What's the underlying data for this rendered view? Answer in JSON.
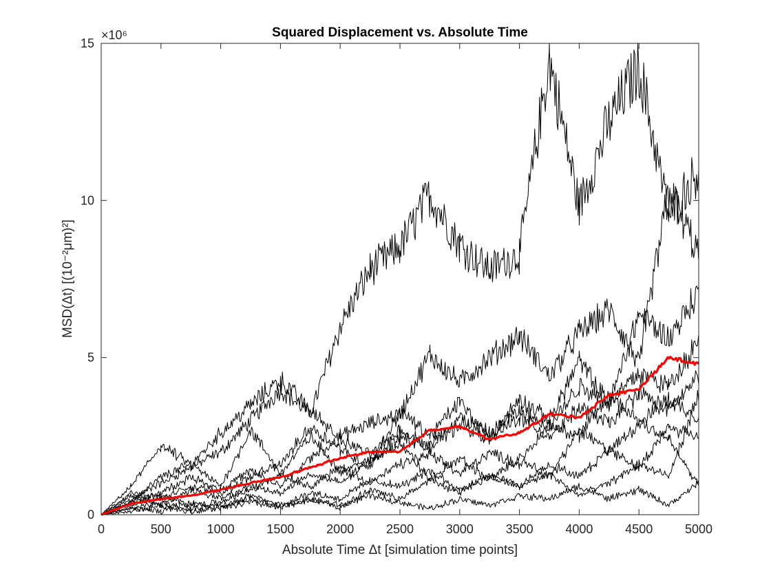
{
  "chart_data": {
    "type": "line",
    "title": "Squared Displacement vs. Absolute Time",
    "xlabel": "Absolute Time Δt [simulation time points]",
    "ylabel": "MSD(Δt) [(10⁻²μm)²]",
    "y_exponent": "×10⁶",
    "xlim": [
      0,
      5000
    ],
    "ylim": [
      0,
      15000000
    ],
    "x_ticks": [
      "0",
      "500",
      "1000",
      "1500",
      "2000",
      "2500",
      "3000",
      "3500",
      "4000",
      "4500",
      "5000"
    ],
    "y_ticks": [
      "0",
      "5",
      "10",
      "15"
    ],
    "grid": false,
    "legend": "none",
    "colors": {
      "trajectory": "#000000",
      "mean": "#ff0000",
      "axes": "#262626"
    },
    "series": [
      {
        "role": "trajectory",
        "x": [
          0,
          250,
          500,
          750,
          1000,
          1250,
          1500,
          1750,
          2000,
          2250,
          2500,
          2750,
          3000,
          3250,
          3500,
          3750,
          4000,
          4250,
          4500,
          4750,
          5000
        ],
        "y": [
          0,
          500000,
          1000000,
          1500000,
          2000000,
          3000000,
          4000000,
          3200000,
          6000000,
          7800000,
          8500000,
          10200000,
          8600000,
          7800000,
          8300000,
          14500000,
          9800000,
          12500000,
          14300000,
          9500000,
          11000000
        ]
      },
      {
        "role": "trajectory",
        "x": [
          0,
          250,
          500,
          750,
          1000,
          1250,
          1500,
          1750,
          2000,
          2250,
          2500,
          2750,
          3000,
          3250,
          3500,
          3750,
          4000,
          4250,
          4500,
          4750,
          5000
        ],
        "y": [
          0,
          400000,
          1200000,
          1600000,
          2600000,
          3500000,
          4300000,
          3300000,
          2500000,
          2900000,
          3200000,
          5100000,
          4200000,
          5000000,
          5700000,
          4400000,
          5800000,
          6500000,
          4800000,
          10300000,
          8300000
        ]
      },
      {
        "role": "trajectory",
        "x": [
          0,
          250,
          500,
          750,
          1000,
          1250,
          1500,
          1750,
          2000,
          2250,
          2500,
          2750,
          3000,
          3250,
          3500,
          3750,
          4000,
          4250,
          4500,
          4750,
          5000
        ],
        "y": [
          0,
          900000,
          2200000,
          1600000,
          900000,
          2700000,
          1300000,
          2500000,
          1400000,
          1700000,
          2300000,
          1100000,
          1800000,
          1100000,
          1800000,
          1200000,
          2700000,
          2000000,
          2900000,
          3700000,
          3100000
        ]
      },
      {
        "role": "trajectory",
        "x": [
          0,
          250,
          500,
          750,
          1000,
          1250,
          1500,
          1750,
          2000,
          2250,
          2500,
          2750,
          3000,
          3250,
          3500,
          3750,
          4000,
          4250,
          4500,
          4750,
          5000
        ],
        "y": [
          0,
          700000,
          500000,
          900000,
          700000,
          1200000,
          1600000,
          2800000,
          2100000,
          1500000,
          3300000,
          2500000,
          3600000,
          2400000,
          3700000,
          3000000,
          4900000,
          3500000,
          6400000,
          5600000,
          7100000
        ]
      },
      {
        "role": "trajectory",
        "x": [
          0,
          250,
          500,
          750,
          1000,
          1250,
          1500,
          1750,
          2000,
          2250,
          2500,
          2750,
          3000,
          3250,
          3500,
          3750,
          4000,
          4250,
          4500,
          4750,
          5000
        ],
        "y": [
          0,
          300000,
          600000,
          300000,
          400000,
          800000,
          1300000,
          900000,
          1500000,
          1000000,
          1600000,
          1900000,
          1300000,
          2000000,
          1600000,
          2900000,
          2500000,
          3800000,
          3000000,
          2400000,
          900000
        ]
      },
      {
        "role": "trajectory",
        "x": [
          0,
          250,
          500,
          750,
          1000,
          1250,
          1500,
          1750,
          2000,
          2250,
          2500,
          2750,
          3000,
          3250,
          3500,
          3750,
          4000,
          4250,
          4500,
          4750,
          5000
        ],
        "y": [
          0,
          200000,
          400000,
          200000,
          300000,
          500000,
          300000,
          700000,
          500000,
          1100000,
          900000,
          1400000,
          800000,
          1200000,
          900000,
          1300000,
          600000,
          1000000,
          1600000,
          1200000,
          3800000
        ]
      },
      {
        "role": "trajectory",
        "x": [
          0,
          250,
          500,
          750,
          1000,
          1250,
          1500,
          1750,
          2000,
          2250,
          2500,
          2750,
          3000,
          3250,
          3500,
          3750,
          4000,
          4250,
          4500,
          4750,
          5000
        ],
        "y": [
          0,
          100000,
          300000,
          100000,
          200000,
          400000,
          200000,
          500000,
          300000,
          600000,
          400000,
          200000,
          500000,
          300000,
          600000,
          500000,
          900000,
          500000,
          800000,
          300000,
          1000000
        ]
      },
      {
        "role": "trajectory",
        "x": [
          0,
          250,
          500,
          750,
          1000,
          1250,
          1500,
          1750,
          2000,
          2250,
          2500,
          2750,
          3000,
          3250,
          3500,
          3750,
          4000,
          4250,
          4500,
          4750,
          5000
        ],
        "y": [
          0,
          400000,
          700000,
          1200000,
          800000,
          1400000,
          900000,
          1800000,
          2400000,
          1900000,
          2700000,
          2200000,
          3100000,
          2600000,
          3300000,
          2800000,
          4100000,
          3600000,
          4500000,
          4100000,
          5600000
        ]
      },
      {
        "role": "trajectory",
        "x": [
          0,
          250,
          500,
          750,
          1000,
          1250,
          1500,
          1750,
          2000,
          2250,
          2500,
          2750,
          3000,
          3250,
          3500,
          3750,
          4000,
          4250,
          4500,
          4750,
          5000
        ],
        "y": [
          0,
          200000,
          100000,
          400000,
          200000,
          600000,
          300000,
          500000,
          200000,
          800000,
          500000,
          1100000,
          700000,
          1300000,
          900000,
          1600000,
          1200000,
          2100000,
          1500000,
          2800000,
          2500000
        ]
      },
      {
        "role": "trajectory",
        "x": [
          0,
          250,
          500,
          750,
          1000,
          1250,
          1500,
          1750,
          2000,
          2250,
          2500,
          2750,
          3000,
          3250,
          3500,
          3750,
          4000,
          4250,
          4500,
          4750,
          5000
        ],
        "y": [
          0,
          600000,
          300000,
          800000,
          500000,
          900000,
          700000,
          1300000,
          1000000,
          1700000,
          2500000,
          2100000,
          2900000,
          2400000,
          3100000,
          2500000,
          3400000,
          2900000,
          3900000,
          3300000,
          4400000
        ]
      },
      {
        "role": "mean",
        "x": [
          0,
          250,
          500,
          750,
          1000,
          1250,
          1500,
          1750,
          2000,
          2250,
          2500,
          2750,
          3000,
          3250,
          3500,
          3750,
          4000,
          4250,
          4500,
          4750,
          5000
        ],
        "y": [
          0,
          350000,
          500000,
          600000,
          800000,
          1000000,
          1200000,
          1500000,
          1800000,
          2000000,
          2000000,
          2700000,
          2800000,
          2400000,
          2600000,
          3200000,
          3100000,
          3800000,
          4000000,
          5000000,
          4800000
        ]
      }
    ]
  }
}
